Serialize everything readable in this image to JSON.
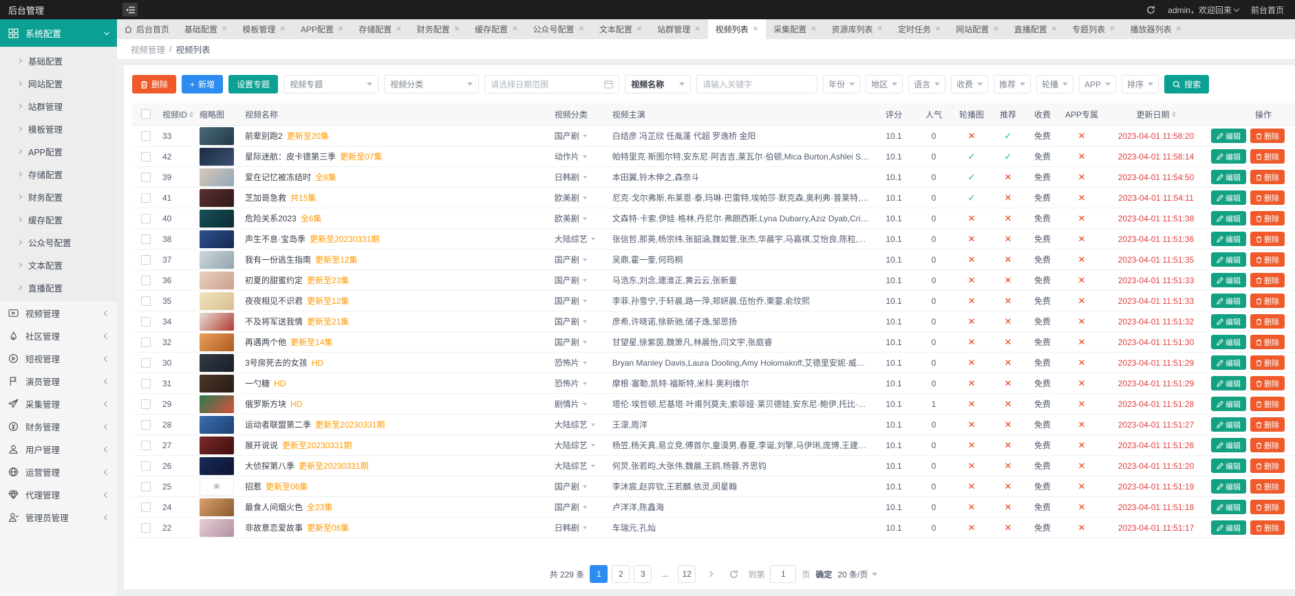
{
  "topbar": {
    "title": "后台管理",
    "user": "admin，欢迎回来",
    "front_link": "前台首页"
  },
  "tabs": [
    {
      "label": "后台首页",
      "home": true,
      "closable": false,
      "active": false
    },
    {
      "label": "基础配置",
      "closable": true
    },
    {
      "label": "模板管理",
      "closable": true
    },
    {
      "label": "APP配置",
      "closable": true
    },
    {
      "label": "存储配置",
      "closable": true
    },
    {
      "label": "财务配置",
      "closable": true
    },
    {
      "label": "缓存配置",
      "closable": true
    },
    {
      "label": "公众号配置",
      "closable": true
    },
    {
      "label": "文本配置",
      "closable": true
    },
    {
      "label": "站群管理",
      "closable": true
    },
    {
      "label": "视频列表",
      "closable": true,
      "active": true
    },
    {
      "label": "采集配置",
      "closable": true
    },
    {
      "label": "资源库列表",
      "closable": true
    },
    {
      "label": "定时任务",
      "closable": true
    },
    {
      "label": "网站配置",
      "closable": true
    },
    {
      "label": "直播配置",
      "closable": true
    },
    {
      "label": "专题列表",
      "closable": true
    },
    {
      "label": "播放器列表",
      "closable": true
    }
  ],
  "sidebar": {
    "group": {
      "label": "系统配置",
      "icon": "grid-icon",
      "children": [
        "基础配置",
        "网站配置",
        "站群管理",
        "模板管理",
        "APP配置",
        "存储配置",
        "财务配置",
        "缓存配置",
        "公众号配置",
        "文本配置",
        "直播配置"
      ]
    },
    "items": [
      {
        "label": "视频管理",
        "icon": "video-icon"
      },
      {
        "label": "社区管理",
        "icon": "fire-icon"
      },
      {
        "label": "短视管理",
        "icon": "play-circle-icon"
      },
      {
        "label": "演员管理",
        "icon": "flag-icon"
      },
      {
        "label": "采集管理",
        "icon": "send-icon"
      },
      {
        "label": "财务管理",
        "icon": "money-icon"
      },
      {
        "label": "用户管理",
        "icon": "user-icon"
      },
      {
        "label": "运营管理",
        "icon": "globe-icon"
      },
      {
        "label": "代理管理",
        "icon": "gem-icon"
      },
      {
        "label": "管理员管理",
        "icon": "admin-icon"
      }
    ]
  },
  "breadcrumb": {
    "section": "视频管理",
    "separator": "/",
    "current": "视频列表"
  },
  "toolbar": {
    "delete": "删除",
    "add": "新增",
    "set_topic": "设置专题",
    "topic_select": "视频专题",
    "category_select": "视频分类",
    "date_placeholder": "请选择日期范围",
    "field_select": "视频名称",
    "keyword_placeholder": "请输入关键字",
    "filters": [
      "年份",
      "地区",
      "语言",
      "收费",
      "推荐",
      "轮播",
      "APP",
      "排序"
    ],
    "search": "搜索"
  },
  "table": {
    "columns": {
      "id": "视频ID",
      "thumb": "缩略图",
      "name": "视频名称",
      "category": "视频分类",
      "stars": "视频主演",
      "score": "评分",
      "popularity": "人气",
      "carousel": "轮播图",
      "recommend": "推荐",
      "fee": "收费",
      "app": "APP专属",
      "updated": "更新日期",
      "actions": "操作"
    },
    "row_actions": {
      "edit": "编辑",
      "delete": "删除"
    },
    "rows": [
      {
        "id": "33",
        "title": "前辈别跑2",
        "suffix": "更新至20集",
        "category": "国产剧",
        "stars": "白结彦 冯芷欣 任胤蓬 代超 罗逸桥 金阳",
        "score": "10.1",
        "popularity": "0",
        "carousel": false,
        "recommend": true,
        "fee": "免费",
        "app": false,
        "updated": "2023-04-01 11:58:20",
        "thumb": [
          "#4a6a7a",
          "#22394a"
        ]
      },
      {
        "id": "42",
        "title": "星际迷航：皮卡德第三季",
        "suffix": "更新至07集",
        "category": "动作片",
        "stars": "帕特里克·斯图尔特,安东尼·阿吉吉,莱瓦尔·伯顿,Mica Burton,Ashlei Sharpe Ch…",
        "score": "10.1",
        "popularity": "0",
        "carousel": true,
        "recommend": true,
        "fee": "免费",
        "app": false,
        "updated": "2023-04-01 11:58:14",
        "thumb": [
          "#1b2b44",
          "#3c5270"
        ]
      },
      {
        "id": "39",
        "title": "爱在记忆被冻结时",
        "suffix": "全8集",
        "category": "日韩剧",
        "stars": "本田翼,铃木伸之,森奈斗",
        "score": "10.1",
        "popularity": "0",
        "carousel": true,
        "recommend": false,
        "fee": "免费",
        "app": false,
        "updated": "2023-04-01 11:54:50",
        "thumb": [
          "#d9c7b8",
          "#8fa8b8"
        ]
      },
      {
        "id": "41",
        "title": "芝加哥急救",
        "suffix": "共15集",
        "category": "欧美剧",
        "stars": "尼克·戈尔弗斯,布莱恩·泰,玛琳·巴雷特,埃帕莎·默克森,奥利弗·普莱特,多米尼克·雷…",
        "score": "10.1",
        "popularity": "0",
        "carousel": true,
        "recommend": false,
        "fee": "免费",
        "app": false,
        "updated": "2023-04-01 11:54:11",
        "thumb": [
          "#5a2e2e",
          "#301a1a"
        ]
      },
      {
        "id": "40",
        "title": "危险关系2023",
        "suffix": "全6集",
        "category": "欧美剧",
        "stars": "文森特·卡索,伊娃·格林,丹尼尔·弗朗西斯,Lyna Dubarry,Aziz Dyab,Cris Haris,奥…",
        "score": "10.1",
        "popularity": "0",
        "carousel": false,
        "recommend": false,
        "fee": "免费",
        "app": false,
        "updated": "2023-04-01 11:51:38",
        "thumb": [
          "#175059",
          "#0d2d33"
        ]
      },
      {
        "id": "38",
        "title": "声生不息·宝岛季",
        "suffix": "更新至20230331期",
        "category": "大陆综艺",
        "stars": "张信哲,那英,杨宗纬,张韶涵,魏如萱,张杰,华晨宇,马嘉祺,艾怡良,陈粒,胡德夫,坏特…",
        "score": "10.1",
        "popularity": "0",
        "carousel": false,
        "recommend": false,
        "fee": "免费",
        "app": false,
        "updated": "2023-04-01 11:51:36",
        "thumb": [
          "#2e4f8f",
          "#172a52"
        ]
      },
      {
        "id": "37",
        "title": "我有一份逃生指南",
        "suffix": "更新至12集",
        "category": "国产剧",
        "stars": "吴鼎,霍一奎,何筠桐",
        "score": "10.1",
        "popularity": "0",
        "carousel": false,
        "recommend": false,
        "fee": "免费",
        "app": false,
        "updated": "2023-04-01 11:51:35",
        "thumb": [
          "#cfd8dc",
          "#90a4ae"
        ]
      },
      {
        "id": "36",
        "title": "初夏的甜蜜约定",
        "suffix": "更新至23集",
        "category": "国产剧",
        "stars": "马浩东,刘念,建淮正,黄云云,张新童",
        "score": "10.1",
        "popularity": "0",
        "carousel": false,
        "recommend": false,
        "fee": "免费",
        "app": false,
        "updated": "2023-04-01 11:51:33",
        "thumb": [
          "#e8cfc0",
          "#c9a08a"
        ]
      },
      {
        "id": "35",
        "title": "夜夜相见不识君",
        "suffix": "更新至12集",
        "category": "国产剧",
        "stars": "李菲,孙雪宁,于轩晨,路一萍,郑妍晨,伍怡乔,栗霎,俞玟熙",
        "score": "10.1",
        "popularity": "0",
        "carousel": false,
        "recommend": false,
        "fee": "免费",
        "app": false,
        "updated": "2023-04-01 11:51:33",
        "thumb": [
          "#f0e3c0",
          "#d8c090"
        ]
      },
      {
        "id": "34",
        "title": "不及将军送我情",
        "suffix": "更新至21集",
        "category": "国产剧",
        "stars": "彦希,许晓诺,徐新驰,储子逸,邹思扬",
        "score": "10.1",
        "popularity": "0",
        "carousel": false,
        "recommend": false,
        "fee": "免费",
        "app": false,
        "updated": "2023-04-01 11:51:32",
        "thumb": [
          "#e8e0d8",
          "#b03a30"
        ]
      },
      {
        "id": "32",
        "title": "再遇两个他",
        "suffix": "更新至14集",
        "category": "国产剧",
        "stars": "甘望星,徐紫茵,魏箫凡,林晨怡,闫文宇,张庭睿",
        "score": "10.1",
        "popularity": "0",
        "carousel": false,
        "recommend": false,
        "fee": "免费",
        "app": false,
        "updated": "2023-04-01 11:51:30",
        "thumb": [
          "#e8a05a",
          "#b05a20"
        ]
      },
      {
        "id": "30",
        "title": "3号房死去的女孩",
        "suffix": "HD",
        "category": "恐怖片",
        "stars": "Bryan Manley Davis,Laura Dooling,Amy Holomakoff,艾德里安妮·威尔逊,Jennie Ost…",
        "score": "10.1",
        "popularity": "0",
        "carousel": false,
        "recommend": false,
        "fee": "免费",
        "app": false,
        "updated": "2023-04-01 11:51:29",
        "thumb": [
          "#333a45",
          "#1a1f28"
        ]
      },
      {
        "id": "31",
        "title": "一勺糖",
        "suffix": "HD",
        "category": "恐怖片",
        "stars": "摩根·塞勒,凯特·福斯特,米科·奥利维尔",
        "score": "10.1",
        "popularity": "0",
        "carousel": false,
        "recommend": false,
        "fee": "免费",
        "app": false,
        "updated": "2023-04-01 11:51:29",
        "thumb": [
          "#4a3528",
          "#2a1d14"
        ]
      },
      {
        "id": "29",
        "title": "俄罗斯方块",
        "suffix": "HD",
        "category": "剧情片",
        "stars": "塔伦·埃哲顿,尼基塔·叶甫列莫夫,索菲娅·莱贝德娃,安东尼·鲍伊,托比·琼斯,本·迈…",
        "score": "10.1",
        "popularity": "1",
        "carousel": false,
        "recommend": false,
        "fee": "免费",
        "app": false,
        "updated": "2023-04-01 11:51:28",
        "thumb": [
          "#2a7d4f",
          "#d94f3d"
        ]
      },
      {
        "id": "28",
        "title": "运动者联盟第二季",
        "suffix": "更新至20230331期",
        "category": "大陆综艺",
        "stars": "王濛,周洋",
        "score": "10.1",
        "popularity": "0",
        "carousel": false,
        "recommend": false,
        "fee": "免费",
        "app": false,
        "updated": "2023-04-01 11:51:27",
        "thumb": [
          "#3a6fb0",
          "#1e3f70"
        ]
      },
      {
        "id": "27",
        "title": "展开说说",
        "suffix": "更新至20230331期",
        "category": "大陆综艺",
        "stars": "杨笠,杨天真,易立竞,傅首尔,童漠男,春夏,李诞,刘擎,马伊琍,庞博,王建国,吴昊宸,…",
        "score": "10.1",
        "popularity": "0",
        "carousel": false,
        "recommend": false,
        "fee": "免费",
        "app": false,
        "updated": "2023-04-01 11:51:26",
        "thumb": [
          "#7a2a2a",
          "#401010"
        ]
      },
      {
        "id": "26",
        "title": "大侦探第八季",
        "suffix": "更新至20230331期",
        "category": "大陆综艺",
        "stars": "何炅,张若昀,大张伟,魏晨,王鸥,杨蓉,齐思钧",
        "score": "10.1",
        "popularity": "0",
        "carousel": false,
        "recommend": false,
        "fee": "免费",
        "app": false,
        "updated": "2023-04-01 11:51:20",
        "thumb": [
          "#1a2a5a",
          "#0d1530"
        ]
      },
      {
        "id": "25",
        "title": "招惹",
        "suffix": "更新至06集",
        "category": "国产剧",
        "stars": "李沐宸,赵弈钦,王若麟,依灵,闵星翰",
        "score": "10.1",
        "popularity": "0",
        "carousel": false,
        "recommend": false,
        "fee": "免费",
        "app": false,
        "updated": "2023-04-01 11:51:19",
        "thumb": [
          "#ffffff",
          "#ffffff"
        ],
        "broken": true
      },
      {
        "id": "24",
        "title": "最食人间烟火色",
        "suffix": "全23集",
        "category": "国产剧",
        "stars": "卢洋洋,陈鑫海",
        "score": "10.1",
        "popularity": "0",
        "carousel": false,
        "recommend": false,
        "fee": "免费",
        "app": false,
        "updated": "2023-04-01 11:51:18",
        "thumb": [
          "#d9a06a",
          "#8a5a30"
        ]
      },
      {
        "id": "22",
        "title": "非故意恋爱故事",
        "suffix": "更新至06集",
        "category": "日韩剧",
        "stars": "车瑞元,孔灿",
        "score": "10.1",
        "popularity": "0",
        "carousel": false,
        "recommend": false,
        "fee": "免费",
        "app": false,
        "updated": "2023-04-01 11:51:17",
        "thumb": [
          "#e8d0d8",
          "#b090a0"
        ]
      }
    ]
  },
  "pagination": {
    "total": "共 229 条",
    "pages": [
      "1",
      "2",
      "3",
      "...",
      "12"
    ],
    "active_page": "1",
    "next": "›",
    "jump_label": "到第",
    "jump_value": "1",
    "jump_unit": "页",
    "confirm": "确定",
    "per_page": "20 条/页"
  },
  "colors": {
    "accent_teal": "#0ba093",
    "primary_blue": "#2d8cf0",
    "danger_red": "#f0592a",
    "suffix_orange": "#ff9900",
    "date_red": "#e03e3e",
    "check_green": "#19be6b",
    "cross_red": "#ed4014",
    "topbar_dark": "#1d1d1d"
  }
}
